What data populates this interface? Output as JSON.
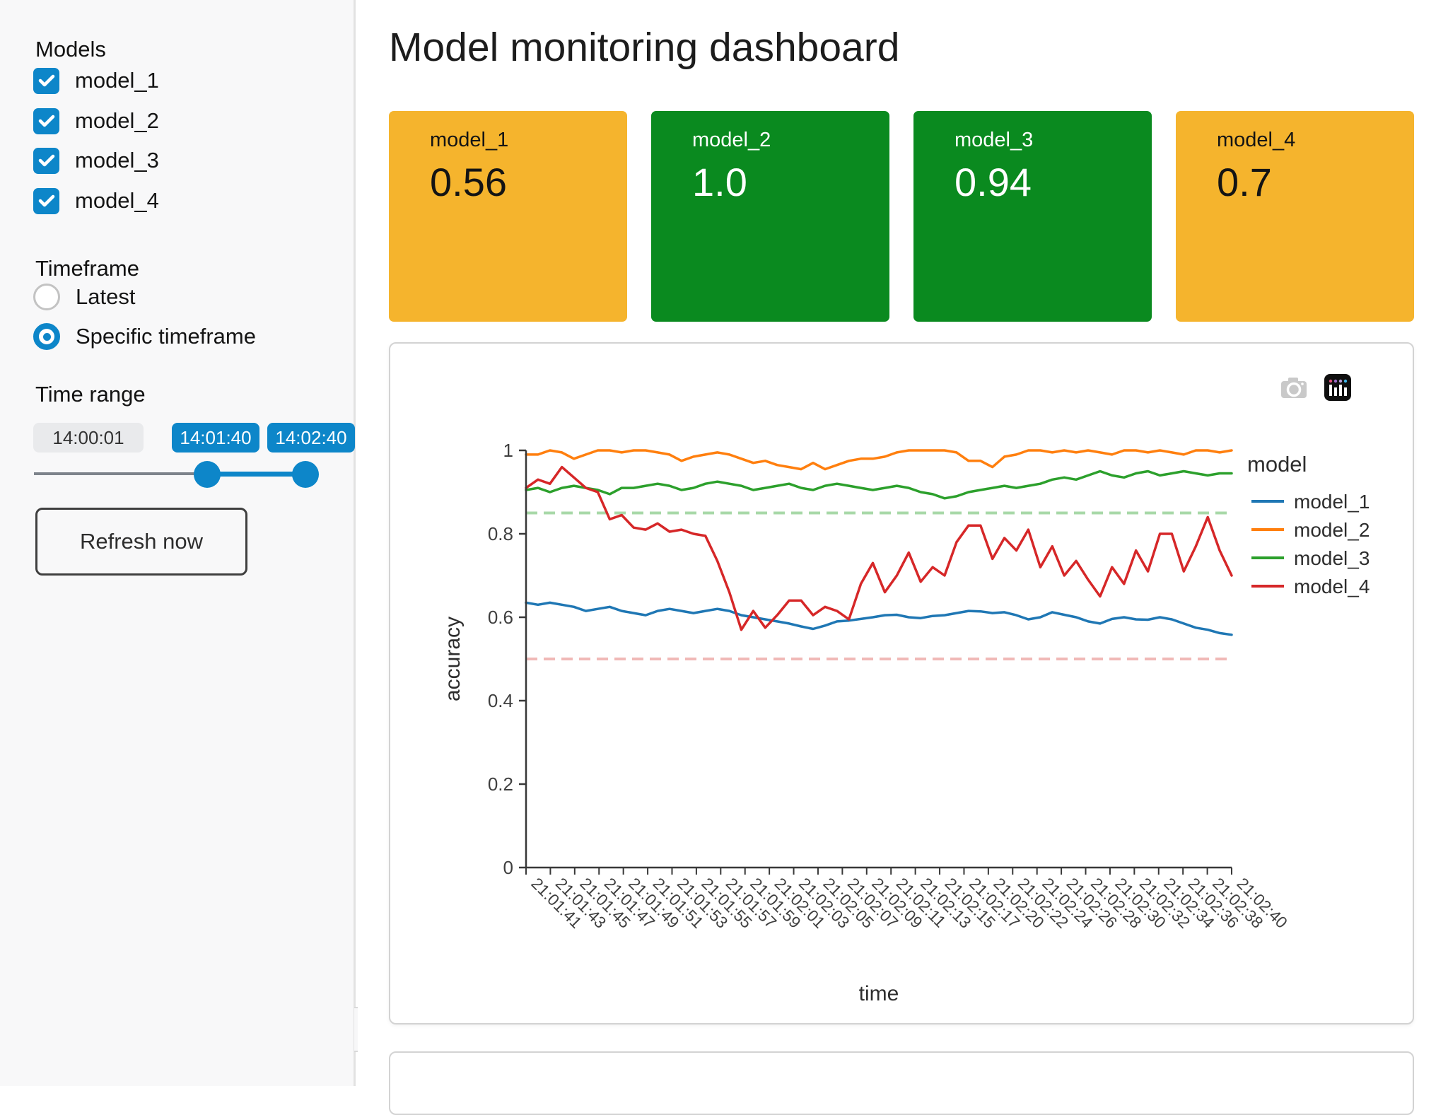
{
  "header": {
    "title": "Model monitoring dashboard"
  },
  "sidebar": {
    "models_label": "Models",
    "models": [
      {
        "label": "model_1",
        "checked": true
      },
      {
        "label": "model_2",
        "checked": true
      },
      {
        "label": "model_3",
        "checked": true
      },
      {
        "label": "model_4",
        "checked": true
      }
    ],
    "timeframe_label": "Timeframe",
    "timeframe_options": [
      {
        "label": "Latest",
        "selected": false
      },
      {
        "label": "Specific timeframe",
        "selected": true
      }
    ],
    "time_range_label": "Time range",
    "slider": {
      "min_label": "14:00:01",
      "start_value": "14:01:40",
      "end_value": "14:02:40"
    },
    "refresh_button_label": "Refresh now",
    "collapse_icon": "chevron-left"
  },
  "metrics": [
    {
      "label": "model_1",
      "value": "0.56",
      "color": "#f5b42d",
      "text_color": "#141414"
    },
    {
      "label": "model_2",
      "value": "1.0",
      "color": "#0a8a1f",
      "text_color": "#ffffff"
    },
    {
      "label": "model_3",
      "value": "0.94",
      "color": "#0a8a1f",
      "text_color": "#ffffff"
    },
    {
      "label": "model_4",
      "value": "0.7",
      "color": "#f5b42d",
      "text_color": "#141414"
    }
  ],
  "colors": {
    "accent_blue": "#0d86c9",
    "card_orange": "#f5b42d",
    "card_green": "#0a8a1f"
  },
  "chart_data": {
    "type": "line",
    "xlabel": "time",
    "ylabel": "accuracy",
    "ylim": [
      0,
      1
    ],
    "yticks": [
      0,
      0.2,
      0.4,
      0.6,
      0.8,
      1
    ],
    "grid": false,
    "legend_title": "model",
    "legend_position": "right",
    "x_tick_labels": [
      "21:01:41",
      "21:01:43",
      "21:01:45",
      "21:01:47",
      "21:01:49",
      "21:01:51",
      "21:01:53",
      "21:01:55",
      "21:01:57",
      "21:01:59",
      "21:02:01",
      "21:02:03",
      "21:02:05",
      "21:02:07",
      "21:02:09",
      "21:02:11",
      "21:02:13",
      "21:02:15",
      "21:02:17",
      "21:02:20",
      "21:02:22",
      "21:02:24",
      "21:02:26",
      "21:02:28",
      "21:02:30",
      "21:02:32",
      "21:02:34",
      "21:02:36",
      "21:02:38",
      "21:02:40"
    ],
    "series": [
      {
        "name": "model_1",
        "color": "#1f77b4",
        "values": [
          0.635,
          0.63,
          0.635,
          0.63,
          0.625,
          0.615,
          0.62,
          0.625,
          0.615,
          0.61,
          0.605,
          0.615,
          0.62,
          0.615,
          0.61,
          0.615,
          0.62,
          0.615,
          0.605,
          0.6,
          0.595,
          0.59,
          0.585,
          0.578,
          0.572,
          0.58,
          0.59,
          0.592,
          0.596,
          0.6,
          0.605,
          0.606,
          0.6,
          0.598,
          0.603,
          0.605,
          0.61,
          0.615,
          0.614,
          0.61,
          0.612,
          0.605,
          0.595,
          0.6,
          0.612,
          0.606,
          0.6,
          0.59,
          0.585,
          0.596,
          0.6,
          0.595,
          0.594,
          0.6,
          0.595,
          0.585,
          0.575,
          0.57,
          0.562,
          0.558
        ]
      },
      {
        "name": "model_2",
        "color": "#ff7f0e",
        "values": [
          0.99,
          0.99,
          1.0,
          0.995,
          0.98,
          0.99,
          1.0,
          1.0,
          0.995,
          1.0,
          1.0,
          0.995,
          0.99,
          0.975,
          0.985,
          0.99,
          0.995,
          0.99,
          0.98,
          0.97,
          0.975,
          0.965,
          0.96,
          0.955,
          0.97,
          0.955,
          0.965,
          0.975,
          0.98,
          0.98,
          0.985,
          0.995,
          1.0,
          1.0,
          1.0,
          1.0,
          0.995,
          0.975,
          0.975,
          0.96,
          0.985,
          0.99,
          1.0,
          1.0,
          0.995,
          1.0,
          0.995,
          1.0,
          0.995,
          0.99,
          1.0,
          1.0,
          0.995,
          1.0,
          0.995,
          0.99,
          1.0,
          1.0,
          0.995,
          1.0
        ]
      },
      {
        "name": "model_3",
        "color": "#2ca02c",
        "values": [
          0.905,
          0.91,
          0.9,
          0.91,
          0.915,
          0.91,
          0.905,
          0.895,
          0.91,
          0.91,
          0.915,
          0.92,
          0.915,
          0.905,
          0.91,
          0.92,
          0.925,
          0.92,
          0.915,
          0.905,
          0.91,
          0.915,
          0.92,
          0.91,
          0.905,
          0.915,
          0.92,
          0.915,
          0.91,
          0.905,
          0.91,
          0.915,
          0.91,
          0.9,
          0.895,
          0.885,
          0.89,
          0.9,
          0.905,
          0.91,
          0.915,
          0.91,
          0.915,
          0.92,
          0.93,
          0.935,
          0.93,
          0.94,
          0.95,
          0.94,
          0.935,
          0.945,
          0.95,
          0.94,
          0.945,
          0.95,
          0.945,
          0.94,
          0.945,
          0.945
        ]
      },
      {
        "name": "model_4",
        "color": "#d62728",
        "values": [
          0.91,
          0.93,
          0.92,
          0.96,
          0.935,
          0.91,
          0.9,
          0.835,
          0.845,
          0.815,
          0.81,
          0.825,
          0.805,
          0.81,
          0.8,
          0.795,
          0.735,
          0.66,
          0.57,
          0.615,
          0.575,
          0.605,
          0.64,
          0.64,
          0.605,
          0.625,
          0.615,
          0.595,
          0.68,
          0.73,
          0.66,
          0.7,
          0.755,
          0.685,
          0.72,
          0.7,
          0.78,
          0.82,
          0.82,
          0.74,
          0.79,
          0.76,
          0.81,
          0.72,
          0.77,
          0.7,
          0.735,
          0.69,
          0.65,
          0.72,
          0.68,
          0.76,
          0.71,
          0.8,
          0.8,
          0.71,
          0.77,
          0.84,
          0.76,
          0.7
        ]
      }
    ],
    "reference_lines": [
      {
        "y": 0.85,
        "color": "#a8d8a8",
        "style": "dashed"
      },
      {
        "y": 0.5,
        "color": "#f0b9b7",
        "style": "dashed"
      }
    ]
  }
}
